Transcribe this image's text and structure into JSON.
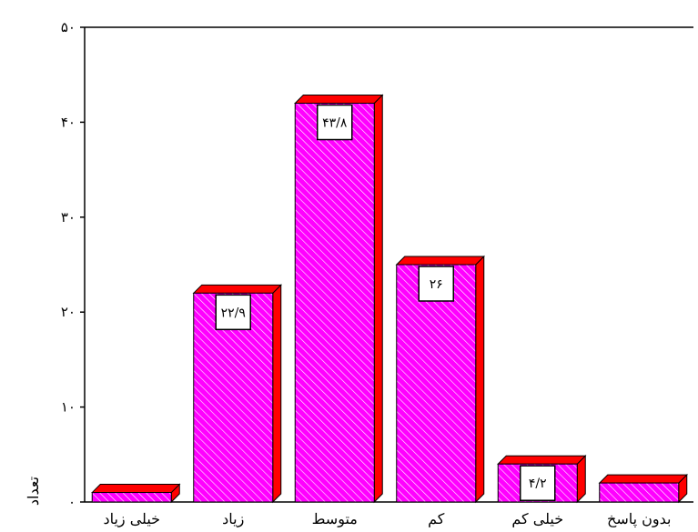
{
  "chart_data": {
    "type": "bar",
    "style": "3d",
    "categories": [
      "خیلی زیاد",
      "زیاد",
      "متوسط",
      "کم",
      "خیلی کم",
      "بدون پاسخ"
    ],
    "values": [
      1,
      22,
      42,
      25,
      4,
      2
    ],
    "data_labels": [
      "",
      "۲۲/۹",
      "۴۳/۸",
      "۲۶",
      "۴/۲",
      ""
    ],
    "ylabel": "تعداد",
    "ylim": [
      0,
      50
    ],
    "yticks": [
      0,
      10,
      20,
      30,
      40,
      50
    ],
    "ytick_labels": [
      "۰",
      "۱۰",
      "۲۰",
      "۳۰",
      "۴۰",
      "۵۰"
    ],
    "grid": false,
    "colors": {
      "bar_front": "#ff00ff",
      "bar_hatch": "#ffffff",
      "bar_side": "#ff0000",
      "bar_top": "#ff0000",
      "outline": "#000000"
    }
  }
}
